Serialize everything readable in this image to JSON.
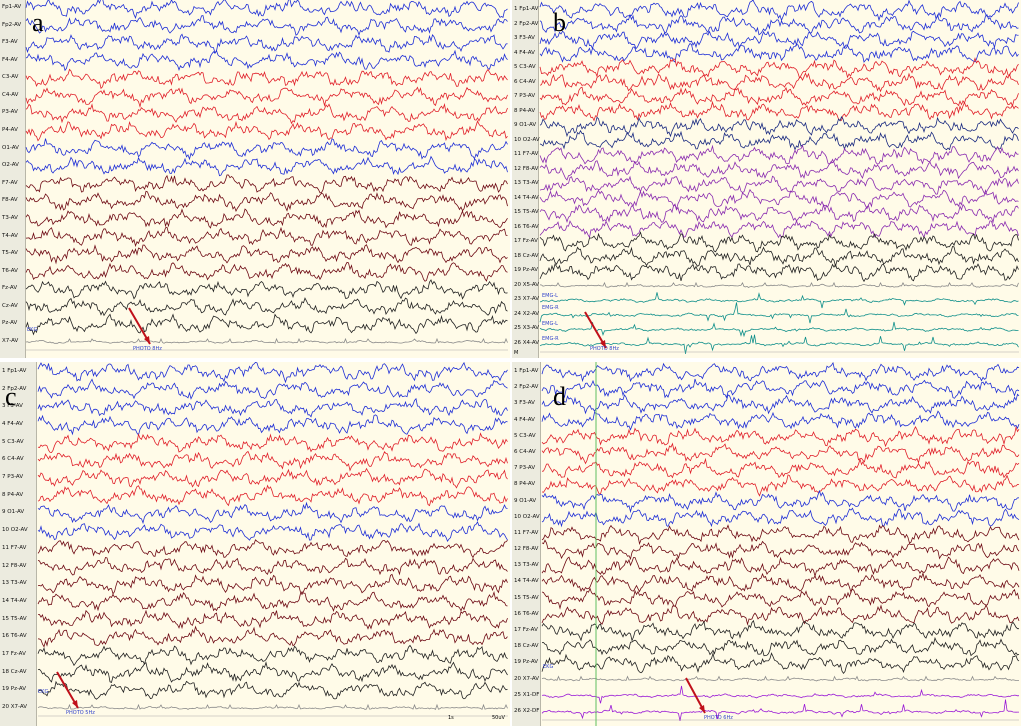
{
  "colors": {
    "blue": "#1f2fd6",
    "red": "#e0202a",
    "navy": "#1a2a80",
    "maroon": "#6e0a14",
    "purple": "#8a2cb0",
    "black": "#222222",
    "teal": "#0f8f8a",
    "gray": "#8a8a8a",
    "violet": "#9a1ad6",
    "arrow": "#c0101a",
    "background": "#fffbe8",
    "gutter": "#ecebdf"
  },
  "panels": [
    {
      "letter": "a",
      "channels": [
        {
          "label": "Fp1-AV",
          "color": "blue"
        },
        {
          "label": "Fp2-AV",
          "color": "blue"
        },
        {
          "label": "F3-AV",
          "color": "blue"
        },
        {
          "label": "F4-AV",
          "color": "blue"
        },
        {
          "label": "C3-AV",
          "color": "red"
        },
        {
          "label": "C4-AV",
          "color": "red"
        },
        {
          "label": "P3-AV",
          "color": "red"
        },
        {
          "label": "P4-AV",
          "color": "red"
        },
        {
          "label": "O1-AV",
          "color": "blue"
        },
        {
          "label": "O2-AV",
          "color": "blue"
        },
        {
          "label": "F7-AV",
          "color": "maroon"
        },
        {
          "label": "F8-AV",
          "color": "maroon"
        },
        {
          "label": "T3-AV",
          "color": "maroon"
        },
        {
          "label": "T4-AV",
          "color": "maroon"
        },
        {
          "label": "T5-AV",
          "color": "maroon"
        },
        {
          "label": "T6-AV",
          "color": "maroon"
        },
        {
          "label": "Fz-AV",
          "color": "black"
        },
        {
          "label": "Cz-AV",
          "color": "black"
        },
        {
          "label": "Pz-AV",
          "color": "black"
        },
        {
          "label": "X7-AV",
          "color": "gray"
        }
      ],
      "marks": [
        "EKG",
        "PHOTO 8Hz"
      ]
    },
    {
      "letter": "b",
      "channels": [
        {
          "label": "1 Fp1-AV",
          "color": "blue"
        },
        {
          "label": "2 Fp2-AV",
          "color": "blue"
        },
        {
          "label": "3 F3-AV",
          "color": "blue"
        },
        {
          "label": "4 F4-AV",
          "color": "blue"
        },
        {
          "label": "5 C3-AV",
          "color": "red"
        },
        {
          "label": "6 C4-AV",
          "color": "red"
        },
        {
          "label": "7 P3-AV",
          "color": "red"
        },
        {
          "label": "8 P4-AV",
          "color": "red"
        },
        {
          "label": "9 O1-AV",
          "color": "navy"
        },
        {
          "label": "10 O2-AV",
          "color": "navy"
        },
        {
          "label": "11 F7-AV",
          "color": "purple"
        },
        {
          "label": "12 F8-AV",
          "color": "purple"
        },
        {
          "label": "13 T3-AV",
          "color": "purple"
        },
        {
          "label": "14 T4-AV",
          "color": "purple"
        },
        {
          "label": "15 T5-AV",
          "color": "purple"
        },
        {
          "label": "16 T6-AV",
          "color": "purple"
        },
        {
          "label": "17 Fz-AV",
          "color": "black"
        },
        {
          "label": "18 Cz-AV",
          "color": "black"
        },
        {
          "label": "19 Pz-AV",
          "color": "black"
        },
        {
          "label": "20 X5-AV",
          "color": "gray"
        },
        {
          "label": "23 X7-AV",
          "color": "teal"
        },
        {
          "label": "24 X2-AV",
          "color": "teal"
        },
        {
          "label": "25 X3-AV",
          "color": "teal"
        },
        {
          "label": "26 X4-AV",
          "color": "teal"
        }
      ],
      "marks": [
        "EMG-L",
        "EMG-R",
        "EMG-L",
        "EMG-R",
        "PHOTO 8Hz",
        "M"
      ]
    },
    {
      "letter": "c",
      "channels": [
        {
          "label": "1 Fp1-AV",
          "color": "blue"
        },
        {
          "label": "2 Fp2-AV",
          "color": "blue"
        },
        {
          "label": "3 F3-AV",
          "color": "blue"
        },
        {
          "label": "4 F4-AV",
          "color": "blue"
        },
        {
          "label": "5 C3-AV",
          "color": "red"
        },
        {
          "label": "6 C4-AV",
          "color": "red"
        },
        {
          "label": "7 P3-AV",
          "color": "red"
        },
        {
          "label": "8 P4-AV",
          "color": "red"
        },
        {
          "label": "9 O1-AV",
          "color": "blue"
        },
        {
          "label": "10 O2-AV",
          "color": "blue"
        },
        {
          "label": "11 F7-AV",
          "color": "maroon"
        },
        {
          "label": "12 F8-AV",
          "color": "maroon"
        },
        {
          "label": "13 T3-AV",
          "color": "maroon"
        },
        {
          "label": "14 T4-AV",
          "color": "maroon"
        },
        {
          "label": "15 T5-AV",
          "color": "maroon"
        },
        {
          "label": "16 T6-AV",
          "color": "maroon"
        },
        {
          "label": "17 Fz-AV",
          "color": "black"
        },
        {
          "label": "18 Cz-AV",
          "color": "black"
        },
        {
          "label": "19 Pz-AV",
          "color": "black"
        },
        {
          "label": "20 X7-AV",
          "color": "gray"
        }
      ],
      "marks": [
        "EKG",
        "PHOTO 5Hz",
        "1s",
        "50uV"
      ]
    },
    {
      "letter": "d",
      "channels": [
        {
          "label": "1 Fp1-AV",
          "color": "blue"
        },
        {
          "label": "2 Fp2-AV",
          "color": "blue"
        },
        {
          "label": "3 F3-AV",
          "color": "blue"
        },
        {
          "label": "4 F4-AV",
          "color": "blue"
        },
        {
          "label": "5 C3-AV",
          "color": "red"
        },
        {
          "label": "6 C4-AV",
          "color": "red"
        },
        {
          "label": "7 P3-AV",
          "color": "red"
        },
        {
          "label": "8 P4-AV",
          "color": "red"
        },
        {
          "label": "9 O1-AV",
          "color": "blue"
        },
        {
          "label": "10 O2-AV",
          "color": "blue"
        },
        {
          "label": "11 F7-AV",
          "color": "maroon"
        },
        {
          "label": "12 F8-AV",
          "color": "maroon"
        },
        {
          "label": "13 T3-AV",
          "color": "maroon"
        },
        {
          "label": "14 T4-AV",
          "color": "maroon"
        },
        {
          "label": "15 T5-AV",
          "color": "maroon"
        },
        {
          "label": "16 T6-AV",
          "color": "maroon"
        },
        {
          "label": "17 Fz-AV",
          "color": "black"
        },
        {
          "label": "18 Cz-AV",
          "color": "black"
        },
        {
          "label": "19 Pz-AV",
          "color": "black"
        },
        {
          "label": "20 X7-AV",
          "color": "gray"
        },
        {
          "label": "25 X1-DF",
          "color": "violet"
        },
        {
          "label": "26 X2-DF",
          "color": "violet"
        }
      ],
      "marks": [
        "EKG",
        "PHOTO 6Hz"
      ]
    }
  ]
}
